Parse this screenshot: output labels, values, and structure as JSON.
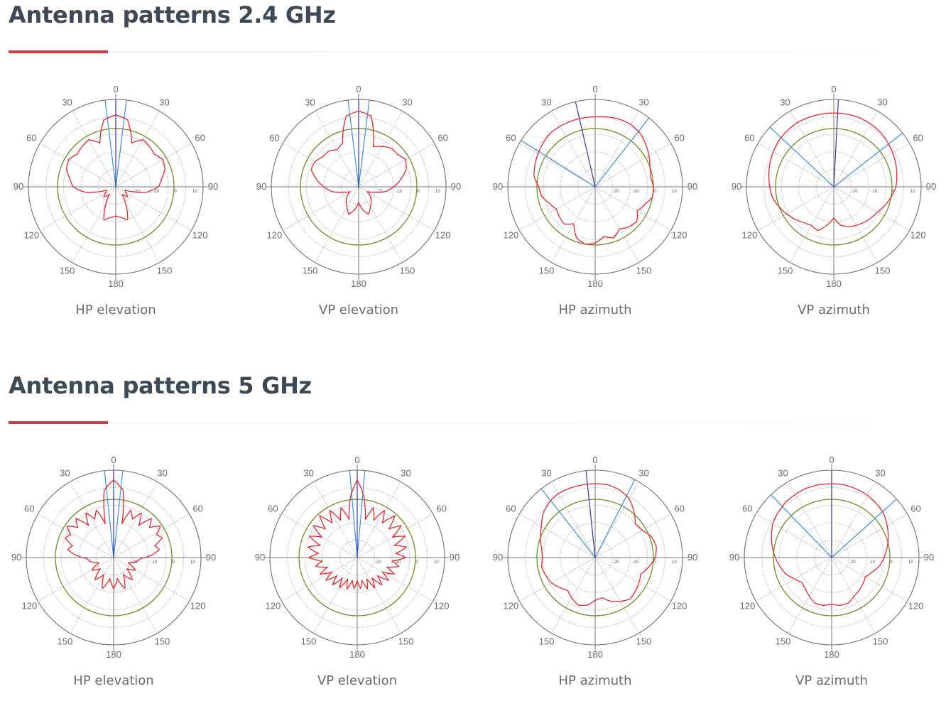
{
  "sections": [
    {
      "title": "Antenna patterns 2.4 GHz",
      "plots": [
        {
          "caption": "HP elevation"
        },
        {
          "caption": "VP elevation"
        },
        {
          "caption": "HP azimuth"
        },
        {
          "caption": "VP azimuth"
        }
      ]
    },
    {
      "title": "Antenna patterns 5 GHz",
      "plots": [
        {
          "caption": "HP elevation"
        },
        {
          "caption": "VP elevation"
        },
        {
          "caption": "HP azimuth"
        },
        {
          "caption": "VP azimuth"
        }
      ]
    }
  ],
  "colors": {
    "pattern": "#e8262b",
    "reference": "#6b8e23",
    "beam_edge": "#3a8fe0",
    "beam_center": "#3333aa",
    "grid": "#888888",
    "label": "#6b6b6b",
    "accent": "#d63b3e"
  },
  "chart_data": [
    {
      "type": "polar",
      "title": "HP elevation",
      "section": "Antenna patterns 2.4 GHz",
      "angle_ticks": [
        "0",
        "30",
        "60",
        "90",
        "120",
        "150",
        "180",
        "150",
        "120",
        "90",
        "60",
        "30"
      ],
      "r_ticks": [
        "-20",
        "-10",
        "0",
        "10"
      ],
      "r_range": [
        -30,
        15
      ],
      "reference_level": 0,
      "beam_lines_deg": [
        -7,
        7
      ],
      "beam_center_deg": 0,
      "gain_db": {
        "angles_deg": [
          0,
          10,
          20,
          30,
          40,
          50,
          60,
          70,
          80,
          90,
          100,
          110,
          120,
          130,
          140,
          150,
          160,
          170,
          180,
          190,
          200,
          210,
          220,
          230,
          240,
          250,
          260,
          270,
          280,
          290,
          300,
          310,
          320,
          330,
          340,
          350
        ],
        "values": [
          7,
          5,
          -6,
          -2,
          -3,
          -4,
          -2,
          -3,
          -6,
          -8,
          -14,
          -25,
          -24,
          -22,
          -25,
          -20,
          -12,
          -14,
          -15,
          -14,
          -12,
          -20,
          -25,
          -22,
          -24,
          -25,
          -14,
          -8,
          -6,
          -3,
          -2,
          -4,
          -3,
          -2,
          -6,
          5
        ]
      }
    },
    {
      "type": "polar",
      "title": "VP elevation",
      "section": "Antenna patterns 2.4 GHz",
      "angle_ticks": [
        "0",
        "30",
        "60",
        "90",
        "120",
        "150",
        "180",
        "150",
        "120",
        "90",
        "60",
        "30"
      ],
      "r_ticks": [
        "-20",
        "-10",
        "0",
        "10"
      ],
      "r_range": [
        -30,
        15
      ],
      "reference_level": 0,
      "beam_lines_deg": [
        -7,
        7
      ],
      "beam_center_deg": 0,
      "gain_db": {
        "angles_deg": [
          0,
          10,
          20,
          30,
          40,
          50,
          60,
          70,
          80,
          90,
          100,
          110,
          120,
          130,
          140,
          150,
          160,
          170,
          180,
          190,
          200,
          210,
          220,
          230,
          240,
          250,
          260,
          270,
          280,
          290,
          300,
          310,
          320,
          330,
          340,
          350
        ],
        "values": [
          9,
          7,
          -8,
          -6,
          -4,
          -4,
          -2,
          -4,
          -8,
          -12,
          -16,
          -22,
          -25,
          -22,
          -20,
          -18,
          -15,
          -18,
          -22,
          -18,
          -15,
          -18,
          -20,
          -22,
          -25,
          -22,
          -16,
          -12,
          -8,
          -4,
          -4,
          -6,
          -6,
          -8,
          -6,
          7
        ]
      }
    },
    {
      "type": "polar",
      "title": "HP azimuth",
      "section": "Antenna patterns 2.4 GHz",
      "angle_ticks": [
        "0",
        "30",
        "60",
        "90",
        "120",
        "150",
        "180",
        "150",
        "120",
        "90",
        "60",
        "30"
      ],
      "r_ticks": [
        "-20",
        "-10",
        "0",
        "10"
      ],
      "r_range": [
        -30,
        15
      ],
      "reference_level": 0,
      "beam_lines_deg": [
        -58,
        38
      ],
      "beam_center_deg": -13,
      "gain_db": {
        "angles_deg": [
          0,
          10,
          20,
          30,
          40,
          50,
          60,
          70,
          80,
          90,
          100,
          110,
          120,
          130,
          140,
          150,
          160,
          170,
          180,
          190,
          200,
          210,
          220,
          230,
          240,
          250,
          260,
          270,
          280,
          290,
          300,
          310,
          320,
          330,
          340,
          350
        ],
        "values": [
          6,
          6.5,
          7,
          7,
          6,
          4,
          2,
          0,
          -1,
          0,
          0,
          -3,
          -5,
          -2,
          -3,
          -5,
          -2,
          -4,
          -1,
          0,
          -2,
          -8,
          -5,
          -6,
          -7,
          -5,
          -2,
          -1,
          2,
          3,
          4,
          5,
          6,
          6,
          6,
          6
        ]
      }
    },
    {
      "type": "polar",
      "title": "VP azimuth",
      "section": "Antenna patterns 2.4 GHz",
      "angle_ticks": [
        "0",
        "30",
        "60",
        "90",
        "120",
        "150",
        "180",
        "150",
        "120",
        "90",
        "60",
        "30"
      ],
      "r_ticks": [
        "-20",
        "-10",
        "0",
        "10"
      ],
      "r_range": [
        -30,
        15
      ],
      "reference_level": 0,
      "beam_lines_deg": [
        -47,
        52
      ],
      "beam_center_deg": 3,
      "gain_db": {
        "angles_deg": [
          0,
          10,
          20,
          30,
          40,
          50,
          60,
          70,
          80,
          90,
          100,
          110,
          120,
          130,
          140,
          150,
          160,
          170,
          180,
          190,
          200,
          210,
          220,
          230,
          240,
          250,
          260,
          270,
          280,
          290,
          300,
          310,
          320,
          330,
          340,
          350
        ],
        "values": [
          8,
          8,
          8,
          7.5,
          7,
          6,
          5,
          4,
          3,
          2,
          0,
          -2,
          -4,
          -5,
          -6,
          -7,
          -8,
          -10,
          -14,
          -10,
          -6,
          -7,
          -6,
          -4,
          -2,
          0,
          2,
          3,
          4,
          5,
          6,
          7,
          7.5,
          8,
          8,
          8
        ]
      }
    },
    {
      "type": "polar",
      "title": "HP elevation",
      "section": "Antenna patterns 5 GHz",
      "angle_ticks": [
        "0",
        "30",
        "60",
        "90",
        "120",
        "150",
        "180",
        "150",
        "120",
        "90",
        "60",
        "30"
      ],
      "r_ticks": [
        "-20",
        "-10",
        "0",
        "10"
      ],
      "r_range": [
        -30,
        15
      ],
      "reference_level": 0,
      "beam_lines_deg": [
        -6,
        6
      ],
      "beam_center_deg": 0,
      "gain_db": {
        "angles_deg": [
          0,
          8,
          14,
          20,
          26,
          32,
          38,
          44,
          50,
          56,
          62,
          68,
          74,
          80,
          86,
          92,
          100,
          110,
          120,
          130,
          140,
          150,
          160,
          170,
          180,
          190,
          200,
          210,
          220,
          230,
          240,
          250,
          260,
          268,
          274,
          280,
          286,
          292,
          298,
          304,
          310,
          316,
          322,
          328,
          334,
          340,
          346,
          352
        ],
        "values": [
          10,
          5,
          -12,
          -4,
          -8,
          -3,
          -9,
          -2,
          -6,
          -1,
          -5,
          -3,
          -8,
          -6,
          -10,
          -16,
          -18,
          -22,
          -17,
          -21,
          -15,
          -20,
          -13,
          -19,
          -14,
          -19,
          -13,
          -20,
          -15,
          -21,
          -17,
          -22,
          -18,
          -16,
          -10,
          -6,
          -8,
          -3,
          -5,
          -1,
          -6,
          -2,
          -9,
          -3,
          -8,
          -4,
          -12,
          5
        ]
      }
    },
    {
      "type": "polar",
      "title": "VP elevation",
      "section": "Antenna patterns 5 GHz",
      "angle_ticks": [
        "0",
        "30",
        "60",
        "90",
        "120",
        "150",
        "180",
        "150",
        "120",
        "90",
        "60",
        "30"
      ],
      "r_ticks": [
        "-20",
        "-10",
        "0",
        "10"
      ],
      "r_range": [
        -30,
        15
      ],
      "reference_level": 0,
      "beam_lines_deg": [
        -5,
        5
      ],
      "beam_center_deg": 0,
      "gain_db": {
        "angles_deg": [
          0,
          6,
          12,
          18,
          24,
          30,
          36,
          42,
          48,
          54,
          60,
          66,
          72,
          78,
          84,
          90,
          96,
          102,
          108,
          114,
          120,
          126,
          132,
          138,
          144,
          150,
          156,
          162,
          168,
          174,
          180,
          186,
          192,
          198,
          204,
          210,
          216,
          222,
          228,
          234,
          240,
          246,
          252,
          258,
          264,
          270,
          276,
          282,
          288,
          294,
          300,
          306,
          312,
          318,
          324,
          330,
          336,
          342,
          348,
          354
        ],
        "values": [
          10,
          2,
          -10,
          -3,
          -9,
          -2,
          -8,
          -1,
          -8,
          -2,
          -9,
          -3,
          -10,
          -4,
          -10,
          -5,
          -12,
          -8,
          -14,
          -9,
          -15,
          -10,
          -16,
          -11,
          -17,
          -12,
          -18,
          -13,
          -18,
          -14,
          -18,
          -14,
          -18,
          -13,
          -18,
          -12,
          -17,
          -11,
          -16,
          -10,
          -15,
          -9,
          -14,
          -8,
          -12,
          -5,
          -10,
          -4,
          -10,
          -3,
          -9,
          -2,
          -8,
          -1,
          -8,
          -2,
          -9,
          -3,
          -10,
          2
        ]
      }
    },
    {
      "type": "polar",
      "title": "HP azimuth",
      "section": "Antenna patterns 5 GHz",
      "angle_ticks": [
        "0",
        "30",
        "60",
        "90",
        "120",
        "150",
        "180",
        "150",
        "120",
        "90",
        "60",
        "30"
      ],
      "r_ticks": [
        "-20",
        "-10",
        "0",
        "10"
      ],
      "r_range": [
        -30,
        15
      ],
      "reference_level": 0,
      "beam_lines_deg": [
        -38,
        27
      ],
      "beam_center_deg": -6,
      "gain_db": {
        "angles_deg": [
          0,
          10,
          20,
          30,
          40,
          50,
          60,
          70,
          80,
          90,
          100,
          110,
          120,
          130,
          140,
          150,
          160,
          170,
          180,
          190,
          200,
          210,
          220,
          230,
          240,
          250,
          260,
          270,
          280,
          290,
          300,
          310,
          320,
          330,
          340,
          350
        ],
        "values": [
          8,
          8,
          7,
          5,
          1,
          -3,
          -2,
          1,
          2,
          1,
          -2,
          -5,
          -4,
          -3,
          -2,
          -4,
          -6,
          -9,
          -8,
          -5,
          -4,
          -6,
          -8,
          -6,
          -4,
          -3,
          -2,
          -3,
          -2,
          0,
          2,
          5,
          7,
          8,
          8,
          8
        ]
      }
    },
    {
      "type": "polar",
      "title": "VP azimuth",
      "section": "Antenna patterns 5 GHz",
      "angle_ticks": [
        "0",
        "30",
        "60",
        "90",
        "120",
        "150",
        "180",
        "150",
        "120",
        "90",
        "60",
        "30"
      ],
      "r_ticks": [
        "-20",
        "-10",
        "0",
        "10"
      ],
      "r_range": [
        -30,
        15
      ],
      "reference_level": 0,
      "beam_lines_deg": [
        -44,
        48
      ],
      "beam_center_deg": 0,
      "gain_db": {
        "angles_deg": [
          0,
          10,
          20,
          30,
          40,
          50,
          60,
          70,
          80,
          90,
          100,
          110,
          120,
          130,
          140,
          150,
          160,
          170,
          180,
          190,
          200,
          210,
          220,
          230,
          240,
          250,
          260,
          270,
          280,
          290,
          300,
          310,
          320,
          330,
          340,
          350
        ],
        "values": [
          8,
          8,
          7.5,
          7,
          6,
          5,
          3,
          1,
          -1,
          -3,
          -5,
          -8,
          -10,
          -9,
          -8,
          -7,
          -5,
          -5,
          -6,
          -5,
          -5,
          -7,
          -9,
          -10,
          -8,
          -5,
          -3,
          -1,
          1,
          3,
          5,
          6,
          7,
          7.5,
          8,
          8
        ]
      }
    }
  ]
}
